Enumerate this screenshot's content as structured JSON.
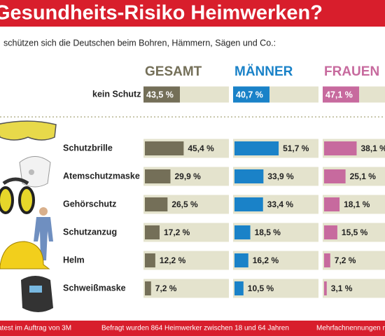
{
  "chart_data": {
    "type": "bar",
    "title": "Gesundheits-Risiko Heimwerken?",
    "subtitle": "schützen sich die Deutschen beim Bohren, Hämmern, Sägen und Co.:",
    "categories": [
      "kein Schutz",
      "Schutzbrille",
      "Atemschutzmaske",
      "Gehörschutz",
      "Schutzanzug",
      "Helm",
      "Schweißmaske"
    ],
    "series": [
      {
        "name": "GESAMT",
        "color": "#746f58",
        "values": [
          43.5,
          45.4,
          29.9,
          26.5,
          17.2,
          12.2,
          7.2
        ],
        "value_labels": [
          "43,5 %",
          "45,4 %",
          "29,9 %",
          "26,5 %",
          "17,2 %",
          "12,2 %",
          "7,2 %"
        ]
      },
      {
        "name": "MÄNNER",
        "color": "#1a82c8",
        "values": [
          40.7,
          51.7,
          33.9,
          33.4,
          18.5,
          16.2,
          10.5
        ],
        "value_labels": [
          "40,7 %",
          "51,7 %",
          "33,9 %",
          "33,4 %",
          "18,5 %",
          "16,2 %",
          "10,5 %"
        ]
      },
      {
        "name": "FRAUEN",
        "color": "#c76a9e",
        "values": [
          47.1,
          38.1,
          25.1,
          18.1,
          15.5,
          7.2,
          3.1
        ],
        "value_labels": [
          "47,1 %",
          "38,1 %",
          "25,1 %",
          "18,1 %",
          "15,5 %",
          "7,2 %",
          "3,1 %"
        ]
      }
    ],
    "xlim": [
      0,
      100
    ],
    "track_color": "#e4e3cd",
    "footer": [
      "atest im Auftrag von 3M",
      "Befragt wurden 864 Heimwerker zwischen 18 und 64 Jahren",
      "Mehrfachnennungen m"
    ]
  }
}
